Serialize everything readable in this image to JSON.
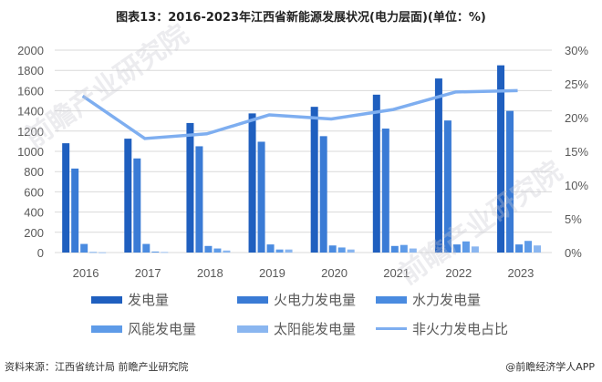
{
  "title": "图表13：2016-2023年江西省新能源发展状况(电力层面)(单位：%)",
  "footer": {
    "source": "资料来源：江西省统计局 前瞻产业研究院",
    "credit": "@前瞻经济学人APP"
  },
  "watermark": "前瞻产业研究院",
  "legend": [
    {
      "label": "发电量",
      "color": "#1F5FBF",
      "type": "bar"
    },
    {
      "label": "火电力发电量",
      "color": "#3A7BD5",
      "type": "bar"
    },
    {
      "label": "水力发电量",
      "color": "#4A8BE0",
      "type": "bar"
    },
    {
      "label": "风能发电量",
      "color": "#5E9BE8",
      "type": "bar"
    },
    {
      "label": "太阳能发电量",
      "color": "#8AB6F0",
      "type": "bar"
    },
    {
      "label": "非火力发电占比",
      "color": "#7EAEF0",
      "type": "line"
    }
  ],
  "chart_data": {
    "type": "bar",
    "title": "图表13：2016-2023年江西省新能源发展状况(电力层面)(单位：%)",
    "categories": [
      "2016",
      "2017",
      "2018",
      "2019",
      "2020",
      "2021",
      "2022",
      "2023"
    ],
    "series": [
      {
        "name": "发电量",
        "axis": "left",
        "type": "bar",
        "color": "#1F5FBF",
        "values": [
          1080,
          1125,
          1280,
          1375,
          1440,
          1560,
          1720,
          1850
        ]
      },
      {
        "name": "火电力发电量",
        "axis": "left",
        "type": "bar",
        "color": "#3A7BD5",
        "values": [
          830,
          930,
          1050,
          1095,
          1150,
          1225,
          1305,
          1400
        ]
      },
      {
        "name": "水力发电量",
        "axis": "left",
        "type": "bar",
        "color": "#4A8BE0",
        "values": [
          85,
          85,
          65,
          80,
          70,
          65,
          80,
          80
        ]
      },
      {
        "name": "风能发电量",
        "axis": "left",
        "type": "bar",
        "color": "#5E9BE8",
        "values": [
          5,
          10,
          40,
          30,
          50,
          75,
          110,
          115
        ]
      },
      {
        "name": "太阳能发电量",
        "axis": "left",
        "type": "bar",
        "color": "#8AB6F0",
        "values": [
          2,
          5,
          20,
          30,
          30,
          40,
          60,
          70
        ]
      },
      {
        "name": "非火力发电占比",
        "axis": "right",
        "type": "line",
        "color": "#7EAEF0",
        "values": [
          23.2,
          16.9,
          17.6,
          20.4,
          19.8,
          21.2,
          23.8,
          24.0
        ]
      }
    ],
    "left_axis": {
      "ylim": [
        0,
        2000
      ],
      "ticks": [
        "0",
        "200",
        "400",
        "600",
        "800",
        "1000",
        "1200",
        "1400",
        "1600",
        "1800",
        "2000"
      ]
    },
    "right_axis": {
      "ylim": [
        0,
        30
      ],
      "ticks": [
        "0%",
        "5%",
        "10%",
        "15%",
        "20%",
        "25%",
        "30%"
      ]
    },
    "xlabel": "",
    "ylabel": "",
    "grid": true,
    "legend_position": "bottom"
  }
}
